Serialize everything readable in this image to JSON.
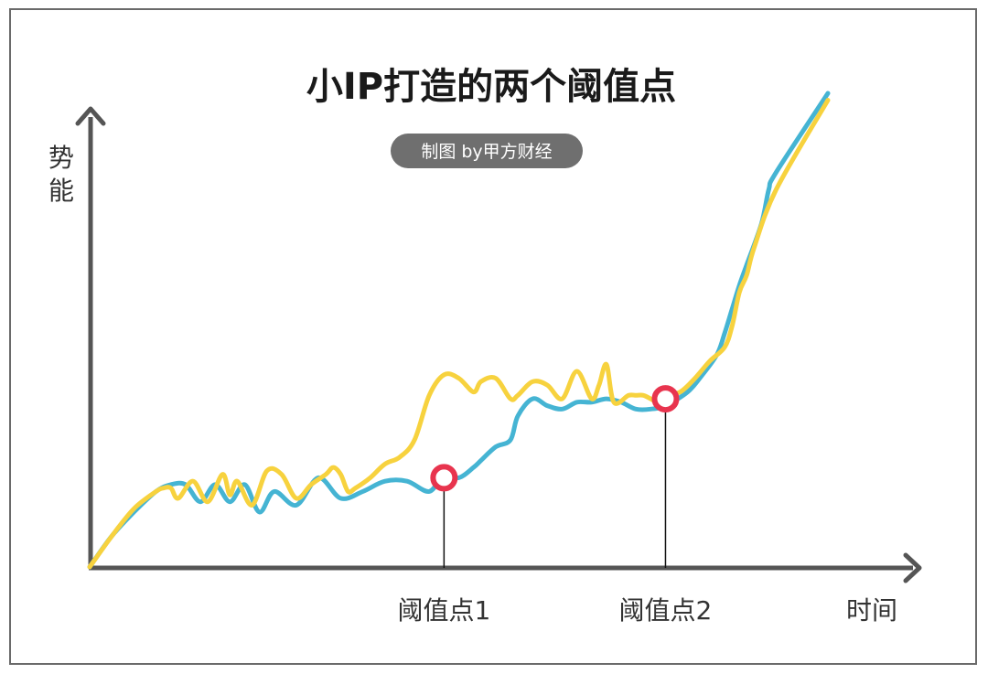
{
  "colors": {
    "frame": "#6a6a6a",
    "axis": "#555555",
    "series_blue": "#45b4d3",
    "series_yellow": "#f7d23e",
    "marker": "#e8344e",
    "badge_bg": "#6f6f6f"
  },
  "chart_data": {
    "type": "line",
    "title": "小IP打造的两个阈值点",
    "subtitle": "制图 by甲方财经",
    "xlabel": "时间",
    "ylabel": "势能",
    "grid": false,
    "axis_ticks": false,
    "series": [
      {
        "color": "blue",
        "x": [
          0,
          3,
          6,
          9,
          11,
          13,
          15,
          17,
          19,
          21,
          23,
          25,
          28,
          31,
          34,
          37,
          40,
          43,
          46,
          48,
          50,
          52,
          53,
          55,
          57,
          58,
          60,
          62,
          64,
          66,
          68,
          70,
          72,
          74,
          76,
          78,
          81,
          83,
          85,
          86,
          87,
          88,
          89,
          91,
          92,
          93,
          100
        ],
        "y": [
          0,
          9,
          16,
          22,
          24,
          24,
          19,
          24,
          19,
          24,
          16,
          22,
          18,
          26,
          20,
          22,
          25,
          25,
          22,
          27,
          26,
          29,
          31,
          35,
          37,
          44,
          49,
          47,
          46,
          48,
          48,
          49,
          48,
          46,
          46,
          47,
          51,
          56,
          62,
          68,
          75,
          82,
          88,
          100,
          110,
          115,
          138
        ]
      },
      {
        "color": "yellow",
        "x": [
          0,
          3,
          6,
          9,
          10,
          11,
          12,
          14,
          16,
          18,
          19,
          20,
          22,
          24,
          26,
          28,
          30,
          32,
          33,
          34,
          35,
          36,
          38,
          40,
          42,
          44,
          46,
          48,
          50,
          52,
          53,
          55,
          57,
          58,
          60,
          62,
          64,
          66,
          68,
          69,
          70,
          71,
          73,
          74,
          75,
          76,
          77,
          78,
          80,
          82,
          84,
          86,
          87,
          88,
          89,
          90,
          93,
          100
        ],
        "y": [
          0,
          9,
          17,
          22,
          23,
          23,
          20,
          25,
          19,
          27,
          21,
          25,
          18,
          28,
          27,
          20,
          24,
          27,
          29,
          27,
          22,
          23,
          26,
          30,
          32,
          37,
          50,
          56,
          55,
          51,
          54,
          55,
          49,
          50,
          54,
          53,
          49,
          57,
          49,
          53,
          59,
          48,
          50,
          50,
          50,
          49,
          48,
          50,
          51,
          55,
          60,
          64,
          70,
          80,
          85,
          93,
          110,
          136
        ]
      }
    ],
    "markers": [
      {
        "label": "阈值点1",
        "x": 48,
        "y": 26
      },
      {
        "label": "阈值点2",
        "x": 78,
        "y": 49
      }
    ],
    "xlim": [
      0,
      100
    ],
    "ylim": [
      0,
      138
    ]
  }
}
